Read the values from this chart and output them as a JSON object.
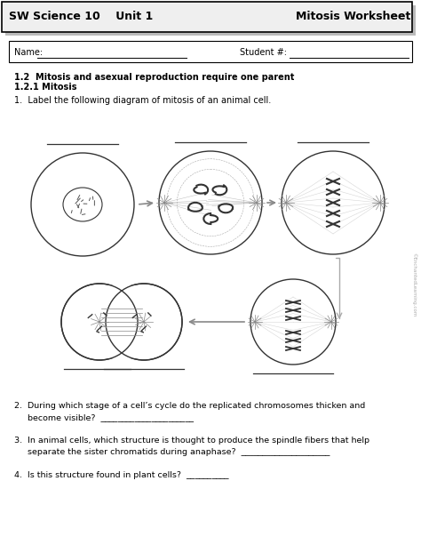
{
  "title_left": "SW Science 10    Unit 1",
  "title_right": "Mitosis Worksheet",
  "name_label": "Name: ",
  "student_label": "Student #: ",
  "section1": "1.2  Mitosis and asexual reproduction require one parent",
  "section2": "1.2.1 Mitosis",
  "q1": "1.  Label the following diagram of mitosis of an animal cell.",
  "q2": "2.  During which stage of a cell’s cycle do the replicated chromosomes thicken and",
  "q2b": "     become visible?  ______________________",
  "q3": "3.  In animal cells, which structure is thought to produce the spindle fibers that help",
  "q3b": "     separate the sister chromatids during anaphase?  _____________________",
  "q4": "4.  Is this structure found in plant cells?  __________",
  "copyright": "©EnchantedLearning.com",
  "bg_color": "#ffffff",
  "text_color": "#000000",
  "gray": "#888888",
  "dark": "#333333",
  "mid": "#666666"
}
